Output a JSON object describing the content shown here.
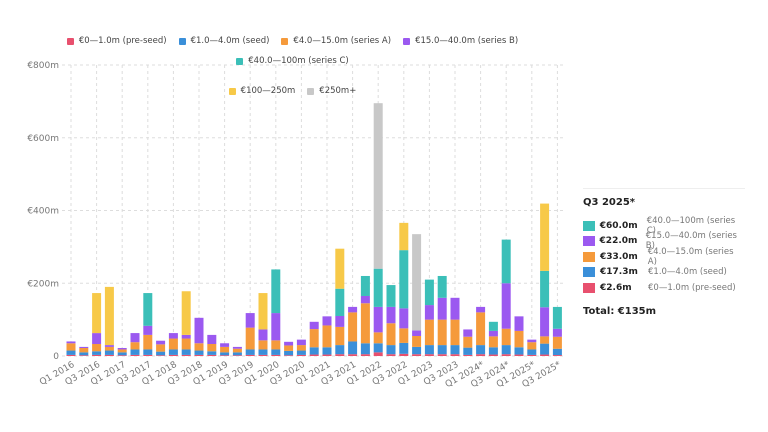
{
  "chart_data": {
    "type": "stacked-bar",
    "categories": [
      "Q1 2016",
      null,
      "Q3 2016",
      null,
      "Q1 2017",
      null,
      "Q3 2017",
      null,
      "Q1 2018",
      null,
      "Q3 2018",
      null,
      "Q1 2019",
      null,
      "Q3 2019",
      null,
      "Q1 2020",
      null,
      "Q3 2020",
      null,
      "Q1 2021",
      null,
      "Q3 2021",
      null,
      "Q1 2022",
      null,
      "Q3 2022",
      null,
      "Q1 2023",
      null,
      "Q3 2023",
      null,
      "Q1 2024*",
      null,
      "Q3 2024*",
      null,
      "Q1 2025*",
      null,
      "Q3 2025*"
    ],
    "ylim": [
      0,
      800
    ],
    "yticks": [
      0,
      {
        "value": 200,
        "label": "€200m"
      },
      {
        "value": 400,
        "label": "€400m"
      },
      {
        "value": 600,
        "label": "€600m"
      },
      {
        "value": 800,
        "label": "€800m"
      }
    ],
    "grid": true,
    "series": [
      {
        "name": "€0—1.0m (pre-seed)",
        "color": "#e8506e",
        "values": [
          3,
          2,
          3,
          3,
          2,
          3,
          3,
          2,
          3,
          3,
          3,
          3,
          2,
          2,
          3,
          3,
          3,
          2,
          3,
          4,
          4,
          5,
          5,
          5,
          10,
          5,
          6,
          5,
          5,
          5,
          5,
          3,
          5,
          4,
          5,
          4,
          3,
          4,
          2.6
        ]
      },
      {
        "name": "€1.0—4.0m (seed)",
        "color": "#3a8fd9",
        "values": [
          12,
          8,
          10,
          12,
          8,
          15,
          15,
          10,
          15,
          15,
          12,
          10,
          8,
          8,
          15,
          15,
          15,
          12,
          12,
          20,
          20,
          25,
          35,
          30,
          25,
          25,
          30,
          20,
          25,
          25,
          25,
          20,
          25,
          20,
          25,
          20,
          15,
          30,
          17.3
        ]
      },
      {
        "name": "€4.0—15.0m (series A)",
        "color": "#f59a3b",
        "values": [
          20,
          12,
          20,
          10,
          8,
          20,
          40,
          20,
          30,
          30,
          20,
          20,
          15,
          10,
          60,
          25,
          25,
          15,
          15,
          50,
          60,
          50,
          80,
          110,
          30,
          60,
          40,
          30,
          70,
          70,
          70,
          30,
          90,
          30,
          45,
          45,
          20,
          20,
          33
        ]
      },
      {
        "name": "€15.0—40.0m (series B)",
        "color": "#9b59f0",
        "values": [
          5,
          3,
          30,
          5,
          4,
          25,
          25,
          10,
          15,
          10,
          70,
          25,
          10,
          5,
          40,
          30,
          75,
          10,
          15,
          20,
          25,
          30,
          15,
          20,
          70,
          45,
          55,
          15,
          40,
          60,
          60,
          20,
          15,
          15,
          125,
          40,
          7,
          80,
          22
        ]
      },
      {
        "name": "€40.0—100m (series C)",
        "color": "#3bbfb8",
        "values": [
          0,
          0,
          0,
          0,
          0,
          0,
          90,
          0,
          0,
          0,
          0,
          0,
          0,
          0,
          0,
          0,
          120,
          0,
          0,
          0,
          0,
          75,
          0,
          55,
          105,
          60,
          160,
          0,
          70,
          60,
          0,
          0,
          0,
          25,
          120,
          0,
          0,
          100,
          60
        ]
      },
      {
        "name": "€100—250m",
        "color": "#f7c948",
        "values": [
          0,
          0,
          110,
          160,
          0,
          0,
          0,
          0,
          0,
          120,
          0,
          0,
          0,
          0,
          0,
          100,
          0,
          0,
          0,
          0,
          0,
          110,
          0,
          0,
          0,
          0,
          75,
          0,
          0,
          0,
          0,
          0,
          0,
          0,
          0,
          0,
          0,
          185,
          0
        ]
      },
      {
        "name": "€250m+",
        "color": "#c8c8c8",
        "values": [
          0,
          0,
          0,
          0,
          0,
          0,
          0,
          0,
          0,
          0,
          0,
          0,
          0,
          0,
          0,
          0,
          0,
          0,
          0,
          0,
          0,
          0,
          0,
          0,
          455,
          0,
          0,
          265,
          0,
          0,
          0,
          0,
          0,
          0,
          0,
          0,
          0,
          0,
          0
        ]
      }
    ]
  },
  "panel": {
    "title": "Q3 2025*",
    "rows": [
      {
        "label": "€60.0m",
        "name": "€40.0—100m (series C)"
      },
      {
        "label": "€22.0m",
        "name": "€15.0—40.0m (series B)"
      },
      {
        "label": "€33.0m",
        "name": "€4.0—15.0m (series A)"
      },
      {
        "label": "€17.3m",
        "name": "€1.0—4.0m (seed)"
      },
      {
        "label": "€2.6m",
        "name": "€0—1.0m (pre-seed)"
      }
    ],
    "total": "Total: €135m"
  }
}
